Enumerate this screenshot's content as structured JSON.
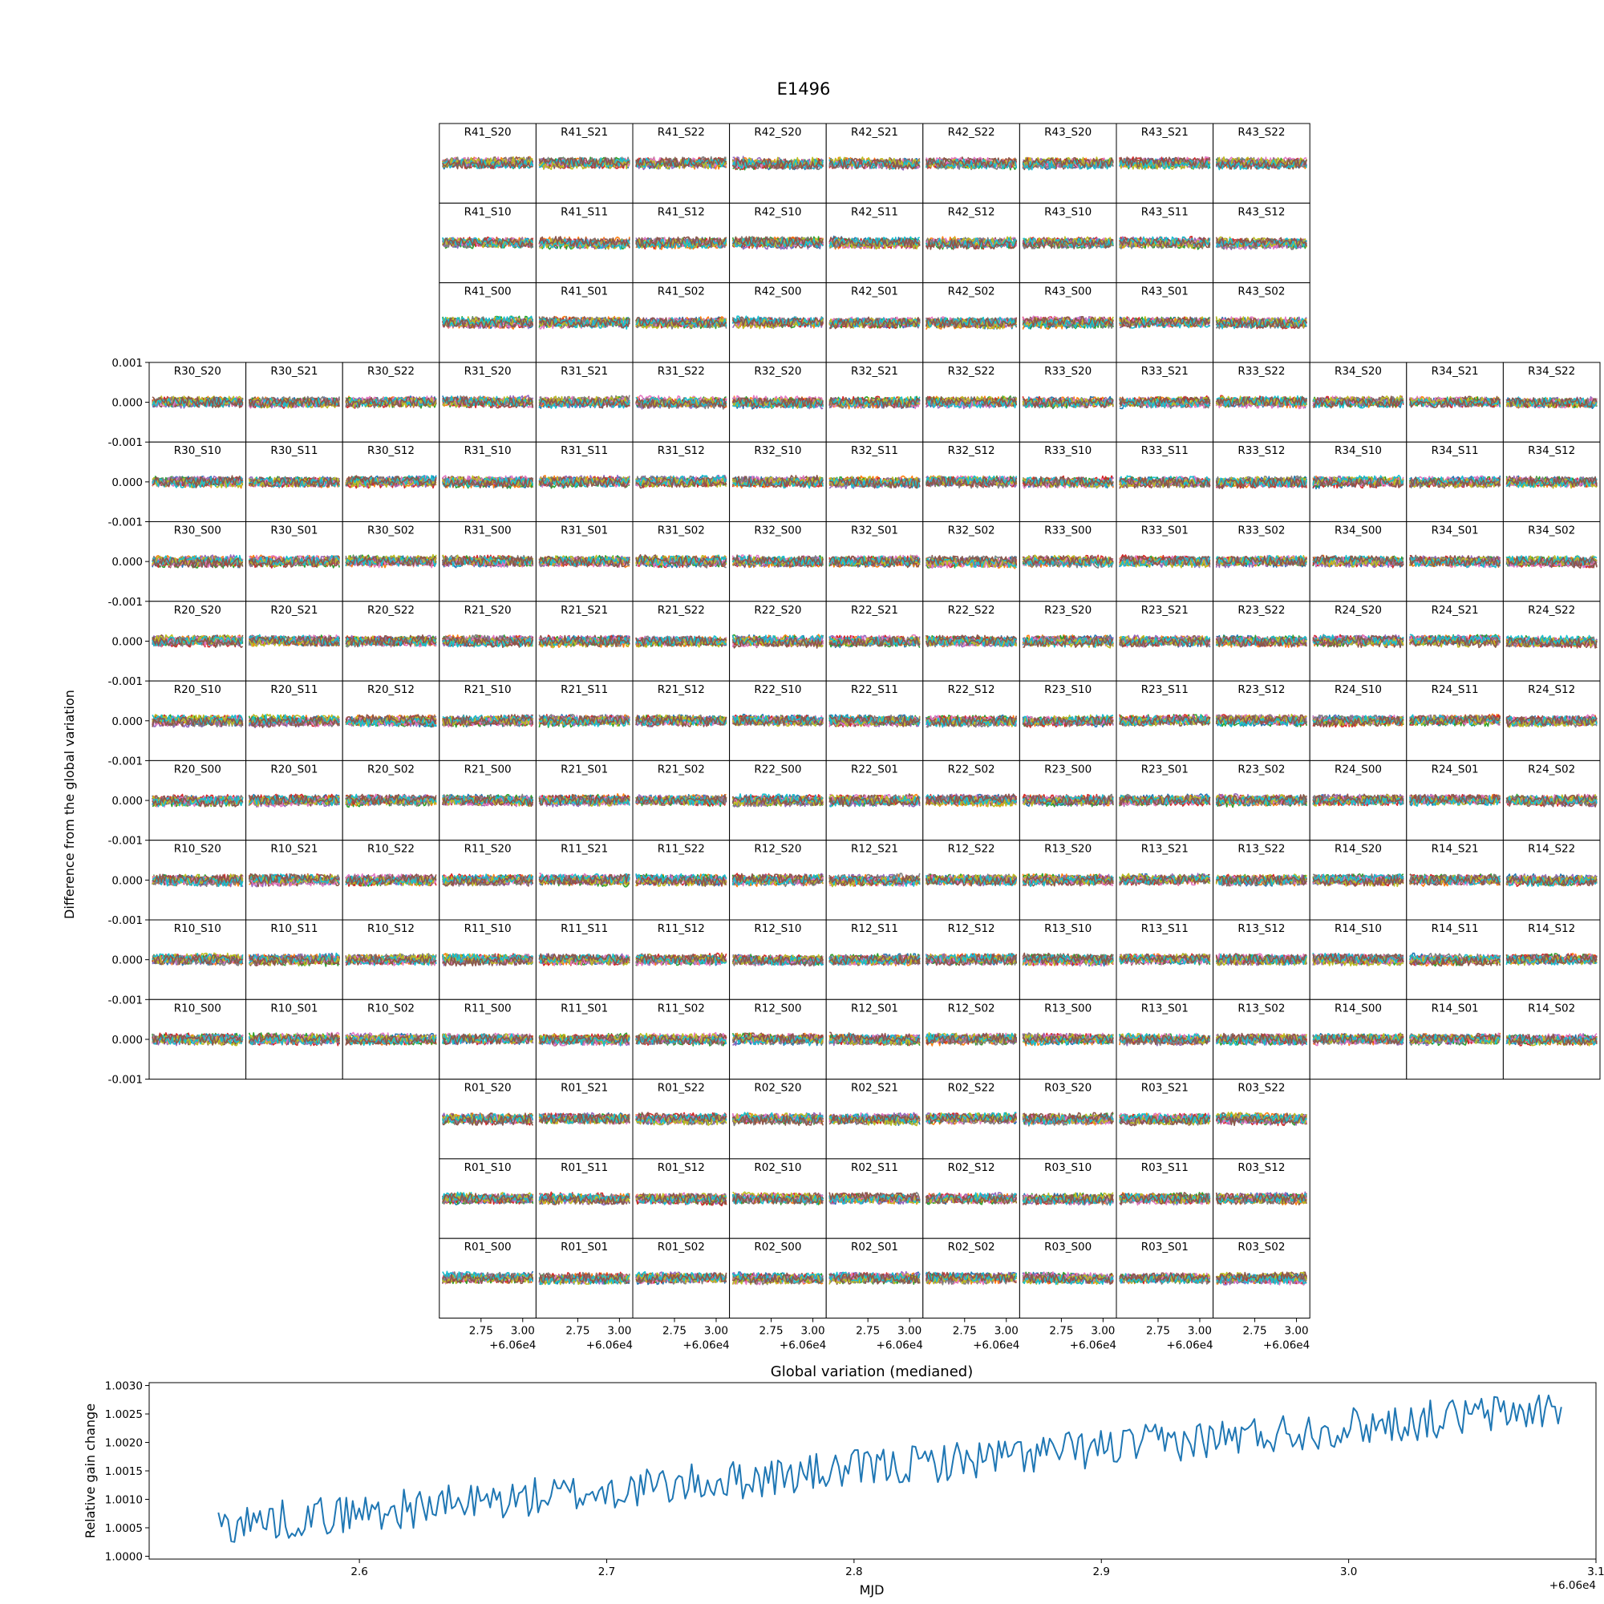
{
  "figure": {
    "title": "E1496"
  },
  "chart_data": [
    {
      "type": "line",
      "name": "focal-plane-grid",
      "ylabel": "Difference from the global variation",
      "ylim": [
        -0.001,
        0.001
      ],
      "yticks": [
        "0.001",
        "0.000",
        "-0.001"
      ],
      "xlim": [
        2.5,
        3.08
      ],
      "xticks": [
        "2.75",
        "3.00"
      ],
      "x_offset_label": "+6.06e4",
      "series_colors": [
        "#1f77b4",
        "#ff7f0e",
        "#2ca02c",
        "#d62728",
        "#9467bd",
        "#8c564b",
        "#e377c2",
        "#7f7f7f",
        "#bcbd22",
        "#17becf",
        "#8c564b"
      ],
      "note_rows": [
        "R4",
        "R3",
        "R2",
        "R1",
        "R0"
      ],
      "rows": [
        [
          "",
          "",
          "",
          "R41_S20",
          "R41_S21",
          "R41_S22",
          "R42_S20",
          "R42_S21",
          "R42_S22",
          "R43_S20",
          "R43_S21",
          "R43_S22",
          "",
          "",
          ""
        ],
        [
          "",
          "",
          "",
          "R41_S10",
          "R41_S11",
          "R41_S12",
          "R42_S10",
          "R42_S11",
          "R42_S12",
          "R43_S10",
          "R43_S11",
          "R43_S12",
          "",
          "",
          ""
        ],
        [
          "",
          "",
          "",
          "R41_S00",
          "R41_S01",
          "R41_S02",
          "R42_S00",
          "R42_S01",
          "R42_S02",
          "R43_S00",
          "R43_S01",
          "R43_S02",
          "",
          "",
          ""
        ],
        [
          "R30_S20",
          "R30_S21",
          "R30_S22",
          "R31_S20",
          "R31_S21",
          "R31_S22",
          "R32_S20",
          "R32_S21",
          "R32_S22",
          "R33_S20",
          "R33_S21",
          "R33_S22",
          "R34_S20",
          "R34_S21",
          "R34_S22"
        ],
        [
          "R30_S10",
          "R30_S11",
          "R30_S12",
          "R31_S10",
          "R31_S11",
          "R31_S12",
          "R32_S10",
          "R32_S11",
          "R32_S12",
          "R33_S10",
          "R33_S11",
          "R33_S12",
          "R34_S10",
          "R34_S11",
          "R34_S12"
        ],
        [
          "R30_S00",
          "R30_S01",
          "R30_S02",
          "R31_S00",
          "R31_S01",
          "R31_S02",
          "R32_S00",
          "R32_S01",
          "R32_S02",
          "R33_S00",
          "R33_S01",
          "R33_S02",
          "R34_S00",
          "R34_S01",
          "R34_S02"
        ],
        [
          "R20_S20",
          "R20_S21",
          "R20_S22",
          "R21_S20",
          "R21_S21",
          "R21_S22",
          "R22_S20",
          "R22_S21",
          "R22_S22",
          "R23_S20",
          "R23_S21",
          "R23_S22",
          "R24_S20",
          "R24_S21",
          "R24_S22"
        ],
        [
          "R20_S10",
          "R20_S11",
          "R20_S12",
          "R21_S10",
          "R21_S11",
          "R21_S12",
          "R22_S10",
          "R22_S11",
          "R22_S12",
          "R23_S10",
          "R23_S11",
          "R23_S12",
          "R24_S10",
          "R24_S11",
          "R24_S12"
        ],
        [
          "R20_S00",
          "R20_S01",
          "R20_S02",
          "R21_S00",
          "R21_S01",
          "R21_S02",
          "R22_S00",
          "R22_S01",
          "R22_S02",
          "R23_S00",
          "R23_S01",
          "R23_S02",
          "R24_S00",
          "R24_S01",
          "R24_S02"
        ],
        [
          "R10_S20",
          "R10_S21",
          "R10_S22",
          "R11_S20",
          "R11_S21",
          "R11_S22",
          "R12_S20",
          "R12_S21",
          "R12_S22",
          "R13_S20",
          "R13_S21",
          "R13_S22",
          "R14_S20",
          "R14_S21",
          "R14_S22"
        ],
        [
          "R10_S10",
          "R10_S11",
          "R10_S12",
          "R11_S10",
          "R11_S11",
          "R11_S12",
          "R12_S10",
          "R12_S11",
          "R12_S12",
          "R13_S10",
          "R13_S11",
          "R13_S12",
          "R14_S10",
          "R14_S11",
          "R14_S12"
        ],
        [
          "R10_S00",
          "R10_S01",
          "R10_S02",
          "R11_S00",
          "R11_S01",
          "R11_S02",
          "R12_S00",
          "R12_S01",
          "R12_S02",
          "R13_S00",
          "R13_S01",
          "R13_S02",
          "R14_S00",
          "R14_S01",
          "R14_S02"
        ],
        [
          "",
          "",
          "",
          "R01_S20",
          "R01_S21",
          "R01_S22",
          "R02_S20",
          "R02_S21",
          "R02_S22",
          "R03_S20",
          "R03_S21",
          "R03_S22",
          "",
          "",
          ""
        ],
        [
          "",
          "",
          "",
          "R01_S10",
          "R01_S11",
          "R01_S12",
          "R02_S10",
          "R02_S11",
          "R02_S12",
          "R03_S10",
          "R03_S11",
          "R03_S12",
          "",
          "",
          ""
        ],
        [
          "",
          "",
          "",
          "R01_S00",
          "R01_S01",
          "R01_S02",
          "R02_S00",
          "R02_S01",
          "R02_S02",
          "R03_S00",
          "R03_S01",
          "R03_S02",
          "",
          "",
          ""
        ]
      ]
    },
    {
      "type": "line",
      "name": "global-variation",
      "title": "Global variation (medianed)",
      "xlabel": "MJD",
      "ylabel": "Relative gain change",
      "x_offset_label": "+6.06e4",
      "xlim": [
        2.515,
        3.1
      ],
      "ylim": [
        0.99995,
        1.00305
      ],
      "xticks": [
        "2.6",
        "2.7",
        "2.8",
        "2.9",
        "3.0",
        "3.1"
      ],
      "yticks": [
        "1.0030",
        "1.0025",
        "1.0020",
        "1.0015",
        "1.0010",
        "1.0005",
        "1.0000"
      ],
      "x_start": 2.543,
      "x_end": 3.086,
      "y_start": 1.00055,
      "y_end": 1.0026,
      "color": "#1f77b4"
    }
  ]
}
